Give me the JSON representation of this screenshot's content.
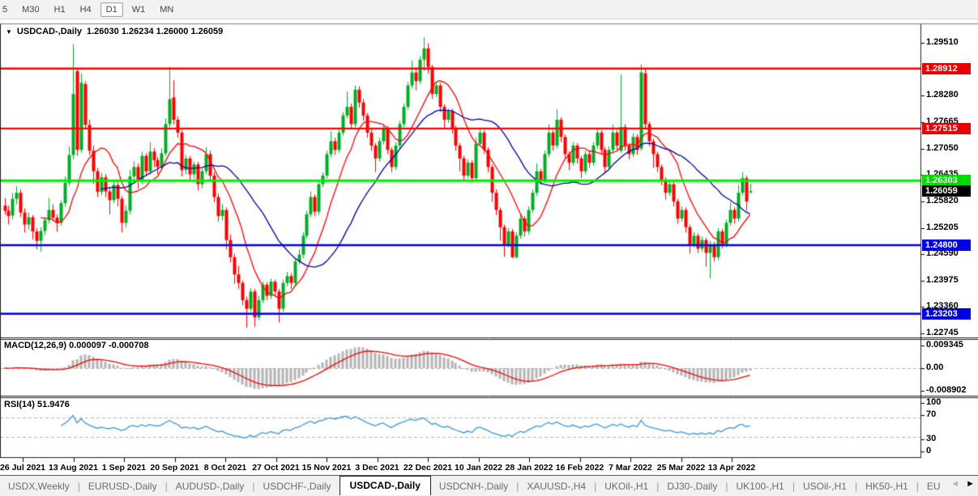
{
  "toolbar": {
    "buttons": [
      "5",
      "M30",
      "H1",
      "H4",
      "D1",
      "W1",
      "MN"
    ],
    "active": "D1"
  },
  "chart_header": {
    "dropdown_icon": "▼",
    "symbol_label": "USDCAD-,Daily",
    "ohlc_text": "1.26030 1.26234 1.26000 1.26059"
  },
  "price_axis": {
    "labels": [
      "1.29510",
      "1.28280",
      "1.27665",
      "1.27050",
      "1.26435",
      "1.25820",
      "1.25205",
      "1.24590",
      "1.23975",
      "1.23360",
      "1.22745"
    ],
    "tags": [
      {
        "text": "1.28912",
        "bg": "#e60000",
        "fg": "#ffffff"
      },
      {
        "text": "1.27515",
        "bg": "#e60000",
        "fg": "#ffffff"
      },
      {
        "text": "1.26303",
        "bg": "#00d900",
        "fg": "#ffffff"
      },
      {
        "text": "1.26059",
        "bg": "#000000",
        "fg": "#ffffff"
      },
      {
        "text": "1.24800",
        "bg": "#0000e6",
        "fg": "#ffffff"
      },
      {
        "text": "1.23203",
        "bg": "#0000e6",
        "fg": "#ffffff"
      }
    ]
  },
  "macd_panel": {
    "label": "MACD(12,26,9) 0.000097 -0.000708",
    "axis_labels": [
      "0.009345",
      "0.00",
      "-0.008902"
    ]
  },
  "rsi_panel": {
    "label": "RSI(14) 51.9476",
    "axis_labels": [
      "100",
      "70",
      "30",
      "0"
    ]
  },
  "date_axis": {
    "labels": [
      "26 Jul 2021",
      "13 Aug 2021",
      "1 Sep 2021",
      "20 Sep 2021",
      "8 Oct 2021",
      "27 Oct 2021",
      "15 Nov 2021",
      "3 Dec 2021",
      "22 Dec 2021",
      "10 Jan 2022",
      "28 Jan 2022",
      "16 Feb 2022",
      "7 Mar 2022",
      "25 Mar 2022",
      "13 Apr 2022"
    ]
  },
  "tabs": {
    "items": [
      "USDX,Weekly",
      "EURUSD-,Daily",
      "AUDUSD-,Daily",
      "USDCHF-,Daily",
      "USDCAD-,Daily",
      "USDCNH-,Daily",
      "XAUUSD-,H4",
      "UKOil-,H1",
      "DJ30-,Daily",
      "UK100-,H1",
      "USOil-,H1",
      "HK50-,H1",
      "EU"
    ],
    "active": "USDCAD-,Daily",
    "scroll_left": "◄",
    "scroll_right": "►"
  },
  "chart_data": {
    "type": "candlestick",
    "symbol": "USDCAD",
    "timeframe": "Daily",
    "last_bar": {
      "open": 1.2603,
      "high": 1.26234,
      "low": 1.26,
      "close": 1.26059
    },
    "colors": {
      "bull": "#00ad25",
      "bear": "#ff0000",
      "ma_fast": "#ff0000",
      "ma_slow": "#0000a8",
      "macd_bars": "#b3b3b3",
      "macd_signal": "#ff0000",
      "rsi_line": "#3a96e8",
      "levels_dashed": "#b5b5b5",
      "hline_red": "#ff0000",
      "hline_green": "#00ee00",
      "hline_blue": "#0000e6"
    },
    "hlines": [
      {
        "price": 1.28912,
        "color": "#ff0000",
        "width": 2.4
      },
      {
        "price": 1.27515,
        "color": "#ff0000",
        "width": 2.4
      },
      {
        "price": 1.26303,
        "color": "#00ee00",
        "width": 3
      },
      {
        "price": 1.248,
        "color": "#0000e6",
        "width": 2.4
      },
      {
        "price": 1.23203,
        "color": "#0000e6",
        "width": 2.4
      }
    ],
    "overlays": [
      {
        "type": "sma",
        "period": 10,
        "color": "#ff0000"
      },
      {
        "type": "sma",
        "period": 25,
        "color": "#0000a8"
      }
    ],
    "indicators": {
      "macd": {
        "fast": 12,
        "slow": 26,
        "signal": 9,
        "current_macd": 9.7e-05,
        "current_signal": -0.000708,
        "axis_max": 0.009345,
        "axis_min": -0.008902
      },
      "rsi": {
        "period": 14,
        "current": 51.9476,
        "levels": [
          70,
          30
        ]
      }
    },
    "candles": [
      [
        1.2572,
        1.259,
        1.2551,
        1.256
      ],
      [
        1.256,
        1.2572,
        1.2528,
        1.2548
      ],
      [
        1.2549,
        1.2601,
        1.254,
        1.2588
      ],
      [
        1.2588,
        1.2617,
        1.2575,
        1.2602
      ],
      [
        1.2602,
        1.261,
        1.2545,
        1.2556
      ],
      [
        1.2556,
        1.2566,
        1.251,
        1.2528
      ],
      [
        1.2528,
        1.2556,
        1.2516,
        1.2545
      ],
      [
        1.2545,
        1.255,
        1.2493,
        1.2512
      ],
      [
        1.2512,
        1.252,
        1.247,
        1.249
      ],
      [
        1.249,
        1.2522,
        1.2465,
        1.2513
      ],
      [
        1.2513,
        1.2546,
        1.2503,
        1.2538
      ],
      [
        1.2538,
        1.259,
        1.253,
        1.2562
      ],
      [
        1.2562,
        1.2575,
        1.2536,
        1.2544
      ],
      [
        1.2544,
        1.2552,
        1.2511,
        1.2532
      ],
      [
        1.2532,
        1.2585,
        1.2525,
        1.2578
      ],
      [
        1.2578,
        1.264,
        1.257,
        1.2625
      ],
      [
        1.2625,
        1.271,
        1.2618,
        1.269
      ],
      [
        1.269,
        1.2948,
        1.268,
        1.2832
      ],
      [
        1.2885,
        1.2893,
        1.2688,
        1.2702
      ],
      [
        1.2702,
        1.288,
        1.2695,
        1.2858
      ],
      [
        1.2855,
        1.2862,
        1.275,
        1.276
      ],
      [
        1.276,
        1.2772,
        1.269,
        1.27
      ],
      [
        1.27,
        1.2712,
        1.2622,
        1.2652
      ],
      [
        1.2652,
        1.266,
        1.2592,
        1.2604
      ],
      [
        1.2604,
        1.2648,
        1.2596,
        1.2638
      ],
      [
        1.2638,
        1.2645,
        1.2592,
        1.2605
      ],
      [
        1.2605,
        1.2615,
        1.2552,
        1.2585
      ],
      [
        1.2585,
        1.2632,
        1.2578,
        1.262
      ],
      [
        1.262,
        1.2628,
        1.257,
        1.2588
      ],
      [
        1.2588,
        1.2594,
        1.251,
        1.2532
      ],
      [
        1.2532,
        1.2572,
        1.2522,
        1.256
      ],
      [
        1.256,
        1.2655,
        1.2552,
        1.264
      ],
      [
        1.264,
        1.2675,
        1.2628,
        1.2662
      ],
      [
        1.2662,
        1.267,
        1.2612,
        1.263
      ],
      [
        1.263,
        1.2698,
        1.2622,
        1.2688
      ],
      [
        1.2688,
        1.2694,
        1.264,
        1.2652
      ],
      [
        1.2652,
        1.272,
        1.2645,
        1.2698
      ],
      [
        1.2698,
        1.2706,
        1.2662,
        1.2678
      ],
      [
        1.2678,
        1.2685,
        1.2645,
        1.2662
      ],
      [
        1.2662,
        1.2705,
        1.2655,
        1.2694
      ],
      [
        1.2694,
        1.2775,
        1.2688,
        1.2762
      ],
      [
        1.2762,
        1.2895,
        1.2755,
        1.282
      ],
      [
        1.2824,
        1.2864,
        1.2762,
        1.2772
      ],
      [
        1.2772,
        1.278,
        1.273,
        1.2742
      ],
      [
        1.2742,
        1.2748,
        1.264,
        1.2655
      ],
      [
        1.2655,
        1.269,
        1.2645,
        1.2682
      ],
      [
        1.2682,
        1.2688,
        1.2632,
        1.2645
      ],
      [
        1.2645,
        1.2675,
        1.2635,
        1.2668
      ],
      [
        1.2668,
        1.2674,
        1.2608,
        1.2622
      ],
      [
        1.2622,
        1.266,
        1.2612,
        1.2652
      ],
      [
        1.2652,
        1.2708,
        1.2645,
        1.2692
      ],
      [
        1.2692,
        1.27,
        1.263,
        1.2642
      ],
      [
        1.2642,
        1.265,
        1.258,
        1.2592
      ],
      [
        1.2592,
        1.26,
        1.2535,
        1.2548
      ],
      [
        1.2548,
        1.2575,
        1.2538,
        1.2562
      ],
      [
        1.2562,
        1.2568,
        1.247,
        1.2492
      ],
      [
        1.2492,
        1.2505,
        1.244,
        1.2452
      ],
      [
        1.2452,
        1.246,
        1.239,
        1.2412
      ],
      [
        1.2412,
        1.2432,
        1.2378,
        1.2392
      ],
      [
        1.2392,
        1.2398,
        1.234,
        1.2352
      ],
      [
        1.2352,
        1.236,
        1.2288,
        1.2332
      ],
      [
        1.2332,
        1.238,
        1.2325,
        1.2372
      ],
      [
        1.2372,
        1.2378,
        1.229,
        1.2312
      ],
      [
        1.2312,
        1.2362,
        1.2305,
        1.2352
      ],
      [
        1.2352,
        1.2395,
        1.2345,
        1.2388
      ],
      [
        1.2388,
        1.2394,
        1.2352,
        1.2362
      ],
      [
        1.2362,
        1.2402,
        1.2355,
        1.2395
      ],
      [
        1.2395,
        1.24,
        1.236,
        1.2372
      ],
      [
        1.2372,
        1.2378,
        1.23,
        1.2332
      ],
      [
        1.2332,
        1.24,
        1.2325,
        1.2392
      ],
      [
        1.2392,
        1.2418,
        1.2385,
        1.2408
      ],
      [
        1.2408,
        1.2415,
        1.2378,
        1.2392
      ],
      [
        1.2392,
        1.245,
        1.2385,
        1.2442
      ],
      [
        1.2442,
        1.247,
        1.2435,
        1.2458
      ],
      [
        1.2458,
        1.251,
        1.245,
        1.2502
      ],
      [
        1.2502,
        1.256,
        1.2495,
        1.2552
      ],
      [
        1.2552,
        1.2605,
        1.2545,
        1.2592
      ],
      [
        1.2592,
        1.2598,
        1.2548,
        1.2558
      ],
      [
        1.2558,
        1.263,
        1.255,
        1.2622
      ],
      [
        1.2622,
        1.265,
        1.2615,
        1.2642
      ],
      [
        1.2642,
        1.27,
        1.2635,
        1.2692
      ],
      [
        1.2692,
        1.2745,
        1.2685,
        1.2722
      ],
      [
        1.2722,
        1.273,
        1.269,
        1.2702
      ],
      [
        1.2702,
        1.275,
        1.2695,
        1.2742
      ],
      [
        1.2742,
        1.279,
        1.2735,
        1.2782
      ],
      [
        1.2782,
        1.2837,
        1.2775,
        1.2802
      ],
      [
        1.2802,
        1.281,
        1.2752,
        1.2762
      ],
      [
        1.2762,
        1.2852,
        1.2755,
        1.2842
      ],
      [
        1.2842,
        1.285,
        1.28,
        1.2812
      ],
      [
        1.2812,
        1.282,
        1.277,
        1.2782
      ],
      [
        1.2782,
        1.2788,
        1.273,
        1.2742
      ],
      [
        1.2742,
        1.275,
        1.27,
        1.2712
      ],
      [
        1.2712,
        1.2718,
        1.265,
        1.2682
      ],
      [
        1.2682,
        1.273,
        1.2675,
        1.2722
      ],
      [
        1.2722,
        1.276,
        1.2715,
        1.2752
      ],
      [
        1.2752,
        1.2758,
        1.2692,
        1.2702
      ],
      [
        1.2702,
        1.2708,
        1.265,
        1.2662
      ],
      [
        1.2662,
        1.272,
        1.2655,
        1.2712
      ],
      [
        1.2712,
        1.277,
        1.2705,
        1.2762
      ],
      [
        1.2762,
        1.281,
        1.2755,
        1.2802
      ],
      [
        1.2802,
        1.286,
        1.2795,
        1.2852
      ],
      [
        1.2852,
        1.291,
        1.2845,
        1.2882
      ],
      [
        1.2882,
        1.289,
        1.284,
        1.2862
      ],
      [
        1.2862,
        1.292,
        1.2855,
        1.2912
      ],
      [
        1.2912,
        1.2964,
        1.2885,
        1.2938
      ],
      [
        1.2938,
        1.295,
        1.288,
        1.2895
      ],
      [
        1.2895,
        1.29,
        1.282,
        1.2832
      ],
      [
        1.2832,
        1.2858,
        1.2825,
        1.2852
      ],
      [
        1.2852,
        1.2858,
        1.279,
        1.2802
      ],
      [
        1.2802,
        1.2808,
        1.275,
        1.2772
      ],
      [
        1.2772,
        1.2798,
        1.2765,
        1.2792
      ],
      [
        1.2792,
        1.2798,
        1.274,
        1.2752
      ],
      [
        1.2752,
        1.2758,
        1.27,
        1.2712
      ],
      [
        1.2712,
        1.2718,
        1.2652,
        1.2682
      ],
      [
        1.2682,
        1.2688,
        1.263,
        1.2642
      ],
      [
        1.2642,
        1.268,
        1.2635,
        1.2672
      ],
      [
        1.2672,
        1.2678,
        1.2625,
        1.2636
      ],
      [
        1.2636,
        1.273,
        1.263,
        1.2716
      ],
      [
        1.2716,
        1.275,
        1.271,
        1.2742
      ],
      [
        1.2742,
        1.2748,
        1.2692,
        1.2702
      ],
      [
        1.2702,
        1.2708,
        1.265,
        1.2662
      ],
      [
        1.2662,
        1.2668,
        1.258,
        1.2602
      ],
      [
        1.2602,
        1.261,
        1.255,
        1.2562
      ],
      [
        1.2562,
        1.2568,
        1.249,
        1.2522
      ],
      [
        1.2522,
        1.2528,
        1.2453,
        1.2482
      ],
      [
        1.2482,
        1.252,
        1.2475,
        1.2512
      ],
      [
        1.2512,
        1.2518,
        1.245,
        1.2452
      ],
      [
        1.2452,
        1.251,
        1.2448,
        1.2502
      ],
      [
        1.2502,
        1.255,
        1.2495,
        1.2542
      ],
      [
        1.2542,
        1.2548,
        1.25,
        1.2512
      ],
      [
        1.2512,
        1.257,
        1.2505,
        1.2562
      ],
      [
        1.2562,
        1.261,
        1.2555,
        1.2602
      ],
      [
        1.2602,
        1.267,
        1.2595,
        1.2652
      ],
      [
        1.2652,
        1.2658,
        1.262,
        1.2632
      ],
      [
        1.2632,
        1.27,
        1.2625,
        1.2692
      ],
      [
        1.2692,
        1.2762,
        1.2685,
        1.2742
      ],
      [
        1.2742,
        1.2748,
        1.27,
        1.2712
      ],
      [
        1.2712,
        1.2797,
        1.2705,
        1.2772
      ],
      [
        1.2772,
        1.2778,
        1.272,
        1.2732
      ],
      [
        1.2732,
        1.2738,
        1.268,
        1.2692
      ],
      [
        1.2692,
        1.2698,
        1.2655,
        1.2672
      ],
      [
        1.2672,
        1.272,
        1.2665,
        1.2712
      ],
      [
        1.2712,
        1.2718,
        1.267,
        1.2682
      ],
      [
        1.2682,
        1.2688,
        1.2636,
        1.2652
      ],
      [
        1.2652,
        1.27,
        1.2645,
        1.2692
      ],
      [
        1.2692,
        1.2698,
        1.266,
        1.2672
      ],
      [
        1.2672,
        1.272,
        1.2665,
        1.2712
      ],
      [
        1.2712,
        1.275,
        1.2705,
        1.2742
      ],
      [
        1.2742,
        1.2748,
        1.2692,
        1.2702
      ],
      [
        1.2702,
        1.2708,
        1.265,
        1.2662
      ],
      [
        1.2662,
        1.271,
        1.2655,
        1.2702
      ],
      [
        1.2702,
        1.276,
        1.2695,
        1.2742
      ],
      [
        1.2742,
        1.2748,
        1.27,
        1.2712
      ],
      [
        1.27,
        1.2877,
        1.2695,
        1.2755
      ],
      [
        1.2755,
        1.2762,
        1.27,
        1.2712
      ],
      [
        1.2712,
        1.2718,
        1.268,
        1.2692
      ],
      [
        1.2692,
        1.274,
        1.2685,
        1.2732
      ],
      [
        1.2732,
        1.2738,
        1.269,
        1.2702
      ],
      [
        1.2705,
        1.2901,
        1.27,
        1.2882
      ],
      [
        1.288,
        1.289,
        1.275,
        1.2762
      ],
      [
        1.2762,
        1.2768,
        1.271,
        1.2722
      ],
      [
        1.2722,
        1.2728,
        1.266,
        1.2692
      ],
      [
        1.2692,
        1.2698,
        1.265,
        1.2662
      ],
      [
        1.2662,
        1.2668,
        1.262,
        1.2632
      ],
      [
        1.2632,
        1.2638,
        1.2586,
        1.2602
      ],
      [
        1.2602,
        1.263,
        1.2595,
        1.2622
      ],
      [
        1.2622,
        1.2628,
        1.257,
        1.2582
      ],
      [
        1.2582,
        1.2588,
        1.253,
        1.2542
      ],
      [
        1.2542,
        1.257,
        1.2535,
        1.2562
      ],
      [
        1.2562,
        1.2568,
        1.251,
        1.2522
      ],
      [
        1.2522,
        1.2528,
        1.246,
        1.2482
      ],
      [
        1.2482,
        1.251,
        1.2475,
        1.2502
      ],
      [
        1.2502,
        1.2508,
        1.2462,
        1.2472
      ],
      [
        1.2472,
        1.25,
        1.2465,
        1.2492
      ],
      [
        1.2492,
        1.2498,
        1.243,
        1.2462
      ],
      [
        1.2462,
        1.249,
        1.2403,
        1.2482
      ],
      [
        1.2482,
        1.2488,
        1.2442,
        1.2452
      ],
      [
        1.2452,
        1.252,
        1.2445,
        1.2512
      ],
      [
        1.2512,
        1.2518,
        1.2472,
        1.2482
      ],
      [
        1.2482,
        1.254,
        1.2475,
        1.2532
      ],
      [
        1.2532,
        1.258,
        1.2525,
        1.2562
      ],
      [
        1.2562,
        1.2568,
        1.253,
        1.2542
      ],
      [
        1.2542,
        1.262,
        1.2535,
        1.2602
      ],
      [
        1.2602,
        1.265,
        1.2595,
        1.2636
      ],
      [
        1.2636,
        1.2642,
        1.256,
        1.2582
      ],
      [
        1.2603,
        1.26234,
        1.26,
        1.26059
      ]
    ]
  }
}
